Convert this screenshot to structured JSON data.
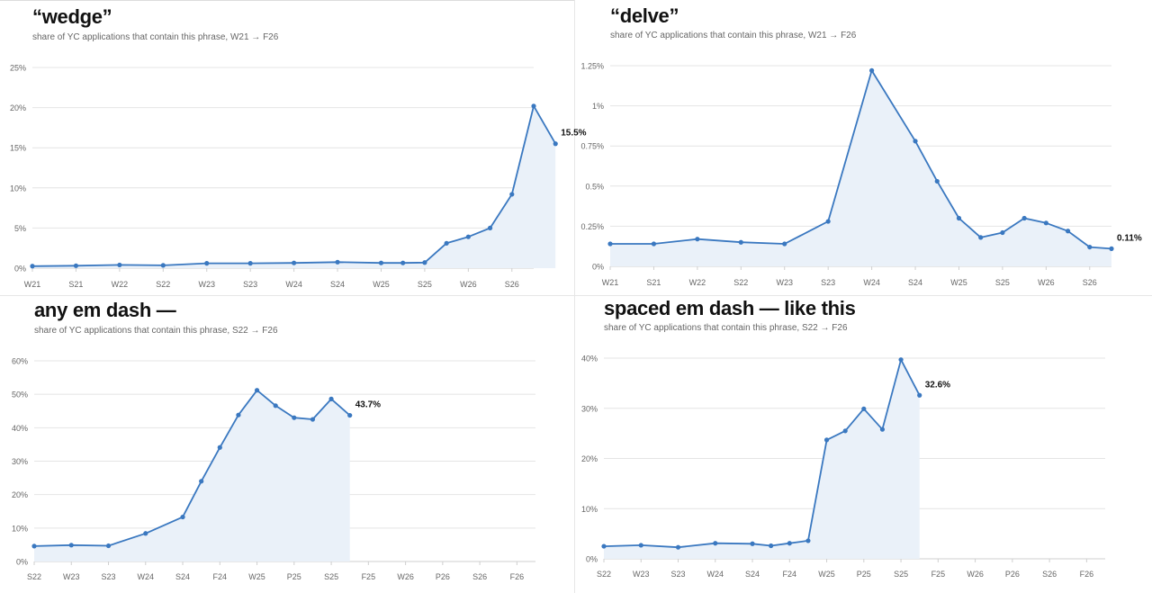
{
  "chart_data": [
    {
      "type": "area",
      "title": "“wedge”",
      "subtitle": "share of YC applications that contain this phrase, W21 → F26",
      "yticks": [
        "0%",
        "5%",
        "10%",
        "15%",
        "20%",
        "25%"
      ],
      "ylim": [
        0,
        25
      ],
      "xticks": [
        "W21",
        "S21",
        "W22",
        "S22",
        "W23",
        "S23",
        "W24",
        "S24",
        "W25",
        "S25",
        "W26",
        "S26"
      ],
      "end_label": "15.5%",
      "grid": true,
      "series": [
        {
          "values": [
            0.25,
            0.3,
            0.4,
            0.35,
            0.6,
            0.6,
            0.65,
            0.75,
            0.65,
            0.65,
            0.7,
            3.1,
            3.9,
            5.0,
            9.2,
            20.2,
            15.5
          ]
        }
      ],
      "x": [
        0,
        1,
        2,
        3,
        4,
        5,
        6,
        7,
        8,
        8.5,
        9,
        9.5,
        10,
        10.5,
        11,
        11.5,
        12
      ]
    },
    {
      "type": "area",
      "title": "“delve”",
      "subtitle": "share of YC applications that contain this phrase, W21 → F26",
      "yticks": [
        "0%",
        "0.25%",
        "0.5%",
        "0.75%",
        "1%",
        "1.25%"
      ],
      "ylim": [
        0,
        1.25
      ],
      "xticks": [
        "W21",
        "S21",
        "W22",
        "S22",
        "W23",
        "S23",
        "W24",
        "S24",
        "W25",
        "S25",
        "W26",
        "S26"
      ],
      "end_label": "0.11%",
      "grid": true,
      "series": [
        {
          "values": [
            0.14,
            0.14,
            0.17,
            0.15,
            0.14,
            0.28,
            1.22,
            0.78,
            0.53,
            0.3,
            0.18,
            0.21,
            0.3,
            0.27,
            0.22,
            0.12,
            0.11
          ]
        }
      ],
      "x": [
        0,
        1,
        2,
        3,
        4,
        5,
        6,
        7,
        7.5,
        8,
        8.5,
        9,
        9.5,
        10,
        10.5,
        11,
        11.5
      ]
    },
    {
      "type": "area",
      "title": "any em dash —",
      "subtitle": "share of YC applications that contain this phrase, S22 → F26",
      "yticks": [
        "0%",
        "10%",
        "20%",
        "30%",
        "40%",
        "50%",
        "60%"
      ],
      "ylim": [
        0,
        60
      ],
      "xticks": [
        "S22",
        "W23",
        "S23",
        "W24",
        "S24",
        "F24",
        "W25",
        "P25",
        "S25",
        "F25",
        "W26",
        "P26",
        "S26",
        "F26"
      ],
      "end_label": "43.7%",
      "grid": true,
      "series": [
        {
          "values": [
            4.6,
            4.9,
            4.7,
            8.4,
            13.3,
            24.0,
            34.1,
            43.8,
            51.2,
            46.6,
            43.0,
            42.5,
            48.6,
            43.7
          ]
        }
      ],
      "x": [
        0,
        1,
        2,
        3,
        4,
        4.5,
        5,
        5.5,
        6,
        6.5,
        7,
        7.5,
        8,
        8.5
      ]
    },
    {
      "type": "area",
      "title": "spaced em dash — like this",
      "subtitle": "share of YC applications that contain this phrase, S22 → F26",
      "yticks": [
        "0%",
        "10%",
        "20%",
        "30%",
        "40%"
      ],
      "ylim": [
        0,
        40
      ],
      "xticks": [
        "S22",
        "W23",
        "S23",
        "W24",
        "S24",
        "F24",
        "W25",
        "P25",
        "S25",
        "F25",
        "W26",
        "P26",
        "S26",
        "F26"
      ],
      "end_label": "32.6%",
      "grid": true,
      "series": [
        {
          "values": [
            2.5,
            2.7,
            2.3,
            3.1,
            3.0,
            2.6,
            3.1,
            3.6,
            23.7,
            25.5,
            29.9,
            25.8,
            39.7,
            32.6
          ]
        }
      ],
      "x": [
        0,
        1,
        2,
        3,
        4,
        4.5,
        5,
        5.5,
        6,
        6.5,
        7,
        7.5,
        8,
        8.5
      ]
    }
  ],
  "colors": {
    "line": "#3a78c0",
    "fill": "#eaf1f9",
    "grid": "#e4e4e4",
    "axis_text": "#666666"
  }
}
